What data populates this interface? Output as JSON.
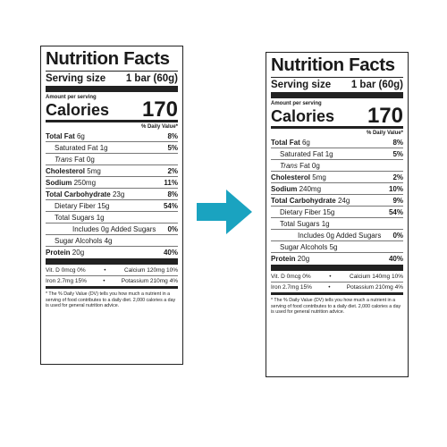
{
  "labels": {
    "left": {
      "title": "Nutrition Facts",
      "serving_label": "Serving size",
      "serving_value": "1 bar (60g)",
      "amount_per_serving": "Amount per serving",
      "calories_label": "Calories",
      "calories_value": "170",
      "dv_header": "% Daily Value*",
      "total_fat_label": "Total Fat",
      "total_fat_amt": "6g",
      "total_fat_pct": "8%",
      "sat_fat_label": "Saturated Fat 1g",
      "sat_fat_pct": "5%",
      "trans_fat_italic": "Trans",
      "trans_fat_rest": "Fat 0g",
      "cholesterol_label": "Cholesterol",
      "cholesterol_amt": "5mg",
      "cholesterol_pct": "2%",
      "sodium_label": "Sodium",
      "sodium_amt": "250mg",
      "sodium_pct": "11%",
      "carb_label": "Total Carbohydrate",
      "carb_amt": "23g",
      "carb_pct": "8%",
      "fiber_label": "Dietary Fiber 15g",
      "fiber_pct": "54%",
      "sugars_label": "Total Sugars 1g",
      "added_sugars_label": "Includes 0g Added Sugars",
      "added_sugars_pct": "0%",
      "sugar_alcohols_label": "Sugar Alcohols 4g",
      "protein_label": "Protein",
      "protein_amt": "20g",
      "protein_pct": "40%",
      "mineral_row1_a": "Vit. D 0mcg 0%",
      "mineral_row1_b": "Calcium 120mg 10%",
      "mineral_row2_a": "Iron 2.7mg 15%",
      "mineral_row2_b": "Potassium 210mg 4%",
      "bullet": "•",
      "footnote": "* The % Daily Value (DV) tells you how much a nutrient in a serving of food contributes to a daily diet. 2,000 calories a day is used for general nutrition advice."
    },
    "right": {
      "title": "Nutrition Facts",
      "serving_label": "Serving size",
      "serving_value": "1 bar (60g)",
      "amount_per_serving": "Amount per serving",
      "calories_label": "Calories",
      "calories_value": "170",
      "dv_header": "% Daily Value*",
      "total_fat_label": "Total Fat",
      "total_fat_amt": "6g",
      "total_fat_pct": "8%",
      "sat_fat_label": "Saturated Fat 1g",
      "sat_fat_pct": "5%",
      "trans_fat_italic": "Trans",
      "trans_fat_rest": "Fat 0g",
      "cholesterol_label": "Cholesterol",
      "cholesterol_amt": "5mg",
      "cholesterol_pct": "2%",
      "sodium_label": "Sodium",
      "sodium_amt": "240mg",
      "sodium_pct": "10%",
      "carb_label": "Total Carbohydrate",
      "carb_amt": "24g",
      "carb_pct": "9%",
      "fiber_label": "Dietary Fiber 15g",
      "fiber_pct": "54%",
      "sugars_label": "Total Sugars 1g",
      "added_sugars_label": "Includes 0g Added Sugars",
      "added_sugars_pct": "0%",
      "sugar_alcohols_label": "Sugar Alcohols 5g",
      "protein_label": "Protein",
      "protein_amt": "20g",
      "protein_pct": "40%",
      "mineral_row1_a": "Vit. D 0mcg 0%",
      "mineral_row1_b": "Calcium 140mg 10%",
      "mineral_row2_a": "Iron 2.7mg 15%",
      "mineral_row2_b": "Potassium 210mg 4%",
      "bullet": "•",
      "footnote": "* The % Daily Value (DV) tells you how much a nutrient in a serving of food contributes to a daily diet. 2,000 calories a day is used for general nutrition advice."
    }
  },
  "arrow": {
    "icon": "right-arrow-icon",
    "color": "#1aa3c0"
  }
}
